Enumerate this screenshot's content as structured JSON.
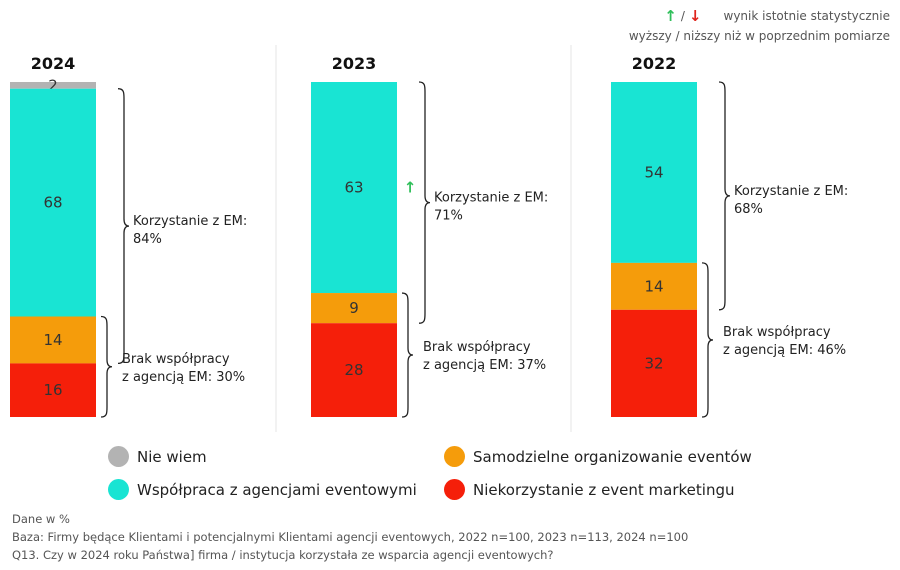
{
  "significance": {
    "slash": "/",
    "line1": "wynik istotnie statystycznie",
    "line2": "wyższy / niższy niż w poprzednim pomiarze",
    "up_color": "#2fbf5a",
    "down_color": "#e0241c"
  },
  "chart_data": {
    "type": "bar",
    "stacked": true,
    "unit": "%",
    "categories": [
      "2024",
      "2023",
      "2022"
    ],
    "series": [
      {
        "name": "Nie wiem",
        "color": "#b3b3b3",
        "values": [
          2,
          0,
          0
        ]
      },
      {
        "name": "Współpraca z agencjami eventowymi",
        "color": "#19e4d3",
        "values": [
          68,
          63,
          54
        ]
      },
      {
        "name": "Samodzielne organizowanie eventów",
        "color": "#f59c0b",
        "values": [
          14,
          9,
          14
        ]
      },
      {
        "name": "Niekorzystanie z event marketingu",
        "color": "#f51f0a",
        "values": [
          16,
          28,
          32
        ]
      }
    ],
    "annotations": [
      {
        "category": "2024",
        "users_line1": "Korzystanie z EM:",
        "users_line2": "84%",
        "nonusers_line1": "Brak współpracy",
        "nonusers_line2": "z agencją EM: 30%",
        "significant_up": false
      },
      {
        "category": "2023",
        "users_line1": "Korzystanie z EM:",
        "users_line2": "71%",
        "nonusers_line1": "Brak współpracy",
        "nonusers_line2": "z agencją EM: 37%",
        "significant_up": true
      },
      {
        "category": "2022",
        "users_line1": "Korzystanie z EM:",
        "users_line2": "68%",
        "nonusers_line1": "Brak współpracy",
        "nonusers_line2": "z agencją EM: 46%",
        "significant_up": false
      }
    ]
  },
  "legend": [
    {
      "label": "Nie wiem",
      "color": "#b3b3b3"
    },
    {
      "label": "Samodzielne organizowanie eventów",
      "color": "#f59c0b"
    },
    {
      "label": "Współpraca z agencjami eventowymi",
      "color": "#19e4d3"
    },
    {
      "label": "Niekorzystanie z event marketingu",
      "color": "#f51f0a"
    }
  ],
  "footer": {
    "line1": "Dane w %",
    "line2": "Baza: Firmy będące Klientami i potencjalnymi Klientami agencji eventowych, 2022 n=100, 2023 n=113, 2024 n=100",
    "line3": "Q13. Czy w 2024 roku Państwa] firma / instytucja korzystała ze wsparcia agencji eventowych?"
  }
}
